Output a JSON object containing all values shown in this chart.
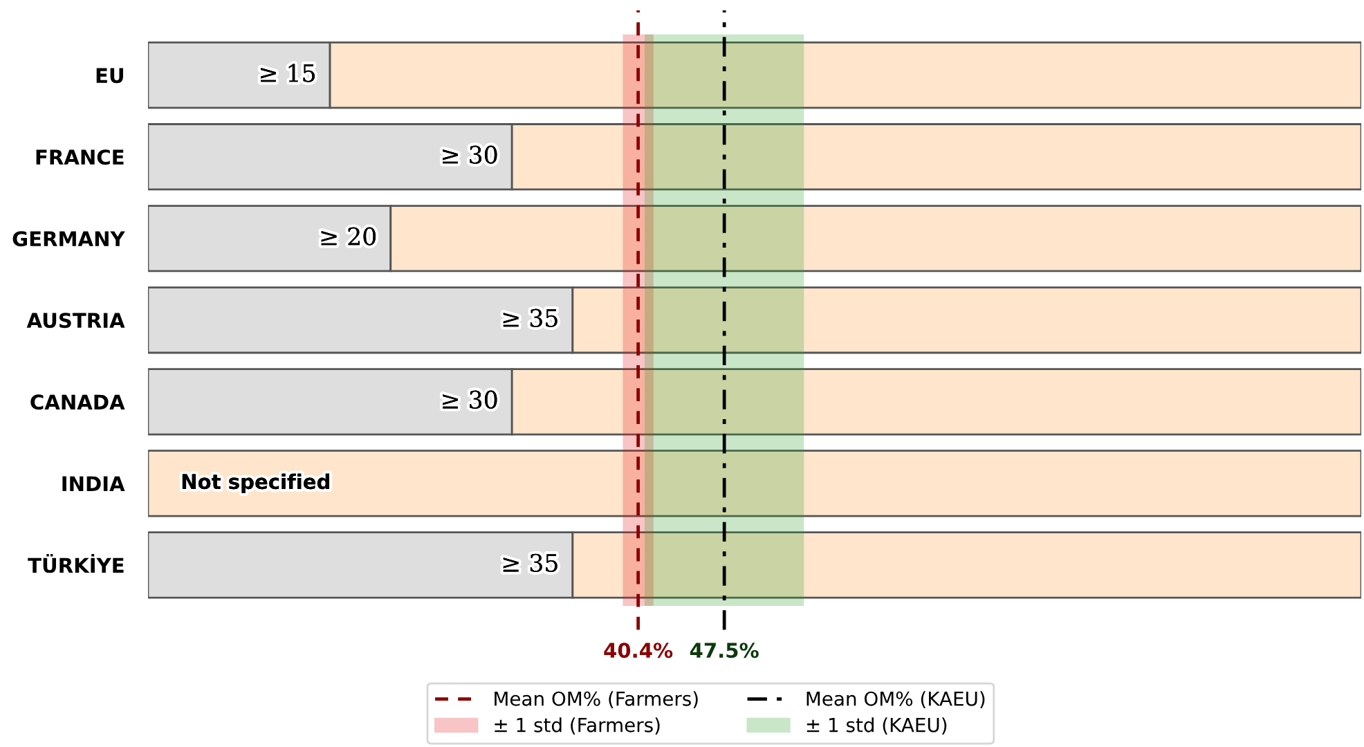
{
  "chart_data": {
    "type": "bar",
    "orientation": "horizontal",
    "stacked": true,
    "categories": [
      "EU",
      "FRANCE",
      "GERMANY",
      "AUSTRIA",
      "CANADA",
      "INDIA",
      "TÜRKİYE"
    ],
    "series": [
      {
        "color": "#dedede",
        "values": [
          15,
          30,
          20,
          35,
          30,
          null,
          35
        ],
        "value_labels": [
          "≥ 15",
          "≥ 30",
          "≥ 20",
          "≥ 35",
          "≥ 30",
          "Not specified",
          "≥ 35"
        ]
      },
      {
        "color": "#ffe5cc",
        "values": [
          85,
          70,
          80,
          65,
          70,
          100,
          65
        ]
      }
    ],
    "xlim": [
      0,
      100
    ],
    "tick_labels": "y",
    "legend": "bottom",
    "ref_lines": [
      {
        "axis": "x",
        "value": 40.4,
        "label": "Mean OM% (Farmers)",
        "color": "#8b0000",
        "line_style": "dashed"
      },
      {
        "axis": "x",
        "value": 47.5,
        "label": "Mean OM% (KAEU)",
        "color": "#000000",
        "line_style": "dashdot"
      }
    ],
    "bands": [
      {
        "axis": "x",
        "from": 39.2,
        "to": 41.6,
        "label": "± 1 std (Farmers)",
        "color": "#e41a1c"
      },
      {
        "axis": "x",
        "from": 41.0,
        "to": 54.0,
        "label": "± 1 std (KAEU)",
        "color": "#2ca02c"
      }
    ],
    "annotations": [
      "40.4%",
      "47.5%"
    ]
  }
}
